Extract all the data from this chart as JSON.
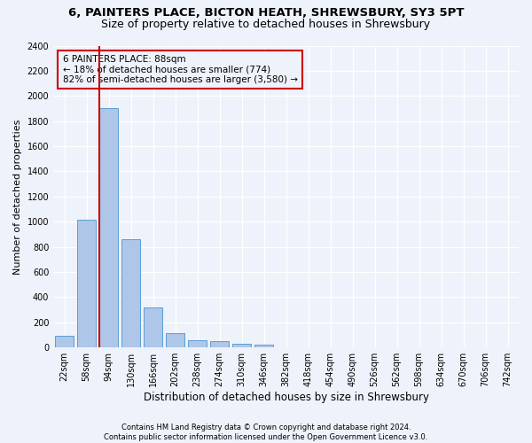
{
  "title1": "6, PAINTERS PLACE, BICTON HEATH, SHREWSBURY, SY3 5PT",
  "title2": "Size of property relative to detached houses in Shrewsbury",
  "xlabel": "Distribution of detached houses by size in Shrewsbury",
  "ylabel": "Number of detached properties",
  "footnote1": "Contains HM Land Registry data © Crown copyright and database right 2024.",
  "footnote2": "Contains public sector information licensed under the Open Government Licence v3.0.",
  "bar_labels": [
    "22sqm",
    "58sqm",
    "94sqm",
    "130sqm",
    "166sqm",
    "202sqm",
    "238sqm",
    "274sqm",
    "310sqm",
    "346sqm",
    "382sqm",
    "418sqm",
    "454sqm",
    "490sqm",
    "526sqm",
    "562sqm",
    "598sqm",
    "634sqm",
    "670sqm",
    "706sqm",
    "742sqm"
  ],
  "bar_values": [
    95,
    1015,
    1900,
    860,
    315,
    115,
    55,
    50,
    30,
    20,
    0,
    0,
    0,
    0,
    0,
    0,
    0,
    0,
    0,
    0,
    0
  ],
  "bar_color": "#aec6e8",
  "bar_edge_color": "#5a9fd4",
  "ylim": [
    0,
    2400
  ],
  "yticks": [
    0,
    200,
    400,
    600,
    800,
    1000,
    1200,
    1400,
    1600,
    1800,
    2000,
    2200,
    2400
  ],
  "property_label": "6 PAINTERS PLACE: 88sqm",
  "annotation_line1": "← 18% of detached houses are smaller (774)",
  "annotation_line2": "82% of semi-detached houses are larger (3,580) →",
  "vline_x_index": 2,
  "vline_color": "#cc0000",
  "background_color": "#eef2fa",
  "grid_color": "#ffffff",
  "title_fontsize": 9.5,
  "subtitle_fontsize": 9,
  "ylabel_fontsize": 8,
  "xlabel_fontsize": 8.5,
  "tick_fontsize": 7,
  "annot_fontsize": 7.5,
  "footnote_fontsize": 6
}
